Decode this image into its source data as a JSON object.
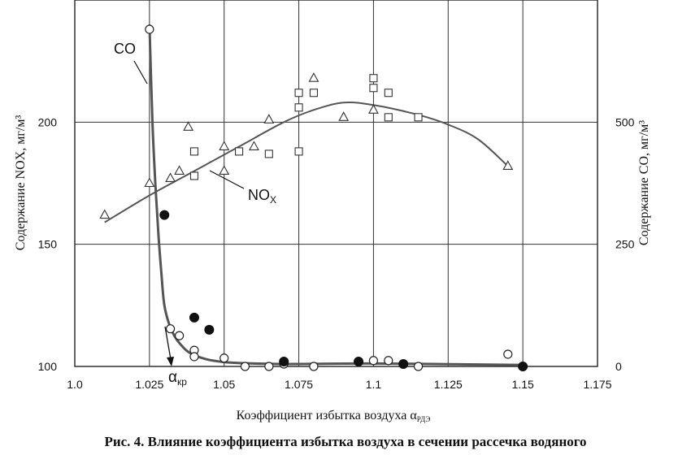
{
  "chart_data": {
    "type": "scatter",
    "title": "",
    "caption": "Рис. 4. Влияние коэффициента избытка воздуха в сечении рассечка водяного",
    "xlabel": "Коэффициент избытка воздуха α",
    "xlabel_sub": "РДЭ",
    "ylabel_left": "Содержание NOX, мг/м³",
    "ylabel_right": "Содержание CO, мг/м³",
    "xlim": [
      1.0,
      1.175
    ],
    "ylim_left": [
      100,
      250
    ],
    "ylim_right": [
      0,
      750
    ],
    "x_ticks": [
      1.0,
      1.025,
      1.05,
      1.075,
      1.1,
      1.125,
      1.15,
      1.175
    ],
    "x_tick_labels": [
      "1.0",
      "1.025",
      "1.05",
      "1.075",
      "1.1",
      "1.125",
      "1.15",
      "1.175"
    ],
    "y_left_ticks": [
      100,
      150,
      200
    ],
    "y_left_tick_labels": [
      "100",
      "150",
      "200"
    ],
    "y_right_ticks": [
      0,
      250,
      500
    ],
    "y_right_tick_labels": [
      "0",
      "250",
      "500"
    ],
    "grid": true,
    "annotations": {
      "co": "CO",
      "nox": "NO",
      "nox_sub": "X",
      "alpha": "α",
      "alpha_sub": "кр"
    },
    "series": [
      {
        "name": "NOX",
        "marker": "triangle",
        "axis": "left",
        "points": [
          [
            1.01,
            162
          ],
          [
            1.025,
            175
          ],
          [
            1.032,
            177
          ],
          [
            1.035,
            180
          ],
          [
            1.038,
            198
          ],
          [
            1.05,
            180
          ],
          [
            1.05,
            190
          ],
          [
            1.06,
            190
          ],
          [
            1.065,
            201
          ],
          [
            1.08,
            218
          ],
          [
            1.09,
            202
          ],
          [
            1.1,
            205
          ],
          [
            1.145,
            182
          ]
        ]
      },
      {
        "name": "NOX",
        "marker": "square",
        "axis": "left",
        "points": [
          [
            1.04,
            188
          ],
          [
            1.04,
            178
          ],
          [
            1.055,
            188
          ],
          [
            1.065,
            187
          ],
          [
            1.075,
            188
          ],
          [
            1.075,
            206
          ],
          [
            1.075,
            212
          ],
          [
            1.08,
            212
          ],
          [
            1.1,
            214
          ],
          [
            1.1,
            218
          ],
          [
            1.105,
            212
          ],
          [
            1.105,
            202
          ],
          [
            1.115,
            202
          ]
        ]
      },
      {
        "name": "NOX fit",
        "marker": "line",
        "axis": "left",
        "points": [
          [
            1.01,
            159
          ],
          [
            1.025,
            170
          ],
          [
            1.04,
            180
          ],
          [
            1.055,
            190
          ],
          [
            1.07,
            200
          ],
          [
            1.08,
            205
          ],
          [
            1.09,
            208
          ],
          [
            1.1,
            207
          ],
          [
            1.115,
            203
          ],
          [
            1.125,
            199
          ],
          [
            1.135,
            193
          ],
          [
            1.145,
            182
          ]
        ]
      },
      {
        "name": "CO",
        "marker": "circle-open",
        "axis": "right",
        "points": [
          [
            1.025,
            690
          ],
          [
            1.032,
            77
          ],
          [
            1.035,
            63
          ],
          [
            1.04,
            33
          ],
          [
            1.04,
            20
          ],
          [
            1.05,
            17
          ],
          [
            1.057,
            0
          ],
          [
            1.065,
            0
          ],
          [
            1.07,
            5
          ],
          [
            1.08,
            0
          ],
          [
            1.1,
            12
          ],
          [
            1.105,
            12
          ],
          [
            1.115,
            0
          ],
          [
            1.145,
            25
          ],
          [
            1.15,
            0
          ]
        ]
      },
      {
        "name": "CO",
        "marker": "circle-filled",
        "axis": "right",
        "points": [
          [
            1.03,
            310
          ],
          [
            1.04,
            100
          ],
          [
            1.045,
            75
          ],
          [
            1.07,
            10
          ],
          [
            1.095,
            10
          ],
          [
            1.11,
            5
          ],
          [
            1.15,
            0
          ]
        ]
      },
      {
        "name": "CO fit",
        "marker": "line",
        "axis": "right",
        "points": [
          [
            1.025,
            700
          ],
          [
            1.026,
            500
          ],
          [
            1.027,
            370
          ],
          [
            1.028,
            270
          ],
          [
            1.029,
            190
          ],
          [
            1.03,
            125
          ],
          [
            1.032,
            80
          ],
          [
            1.035,
            48
          ],
          [
            1.04,
            23
          ],
          [
            1.05,
            9
          ],
          [
            1.07,
            5
          ],
          [
            1.1,
            6
          ],
          [
            1.15,
            3
          ]
        ]
      }
    ]
  }
}
